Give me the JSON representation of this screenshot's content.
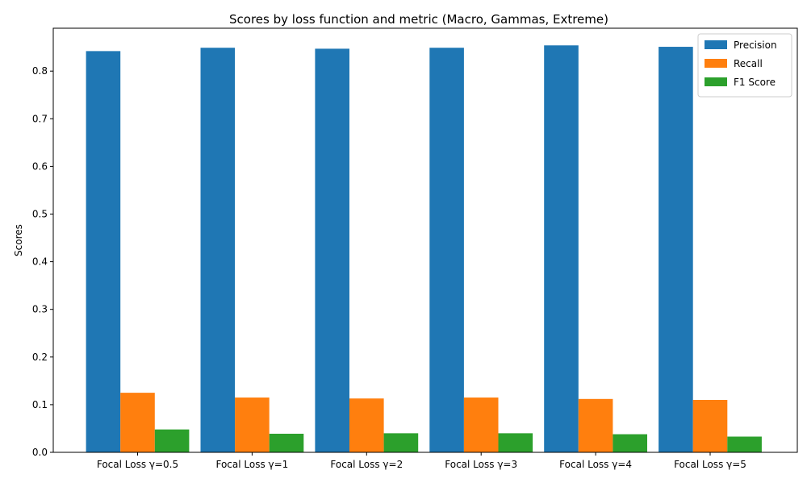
{
  "chart_data": {
    "type": "bar",
    "title": "Scores by loss function and metric (Macro, Gammas, Extreme)",
    "xlabel": "",
    "ylabel": "Scores",
    "categories": [
      "Focal Loss γ=0.5",
      "Focal Loss γ=1",
      "Focal Loss γ=2",
      "Focal Loss γ=3",
      "Focal Loss γ=4",
      "Focal Loss γ=5"
    ],
    "series": [
      {
        "name": "Precision",
        "color": "#1f77b4",
        "values": [
          0.842,
          0.849,
          0.847,
          0.849,
          0.854,
          0.851
        ]
      },
      {
        "name": "Recall",
        "color": "#ff7f0e",
        "values": [
          0.125,
          0.115,
          0.113,
          0.115,
          0.112,
          0.11
        ]
      },
      {
        "name": "F1 Score",
        "color": "#2ca02c",
        "values": [
          0.048,
          0.039,
          0.04,
          0.04,
          0.038,
          0.033
        ]
      }
    ],
    "ylim": [
      0,
      0.89
    ],
    "yticks": [
      "0.0",
      "0.1",
      "0.2",
      "0.3",
      "0.4",
      "0.5",
      "0.6",
      "0.7",
      "0.8"
    ],
    "grid": false,
    "legend_position": "top-right"
  }
}
